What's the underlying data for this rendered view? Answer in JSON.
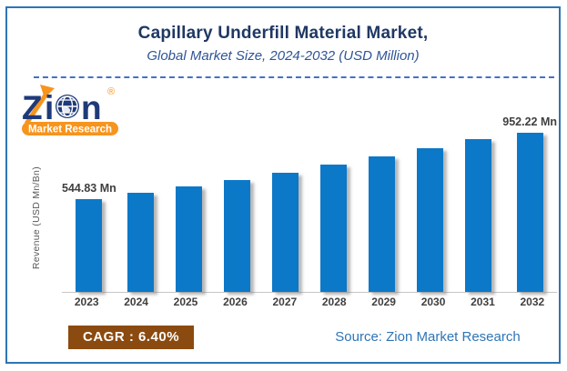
{
  "header": {
    "title": "Capillary Underfill Material Market,",
    "subtitle": "Global Market Size, 2024-2032 (USD Million)"
  },
  "logo": {
    "brand_z": "Z",
    "brand_i": "i",
    "brand_n": "n",
    "registered": "®",
    "tagline": "Market Research"
  },
  "chart_data": {
    "type": "bar",
    "title": "Capillary Underfill Material Market, Global Market Size, 2024-2032 (USD Million)",
    "categories": [
      "2023",
      "2024",
      "2025",
      "2026",
      "2027",
      "2028",
      "2029",
      "2030",
      "2031",
      "2032"
    ],
    "values": [
      544.83,
      579.7,
      616.8,
      656.28,
      698.28,
      742.97,
      790.52,
      841.11,
      894.94,
      952.22
    ],
    "bar_point_labels": [
      "544.83 Mn",
      "",
      "",
      "",
      "",
      "",
      "",
      "",
      "",
      "952.22 Mn"
    ],
    "xlabel": "",
    "ylabel": "Revenue (USD Mn/Bn)",
    "ylim": [
      0,
      952.22
    ],
    "grid": false,
    "legend": false,
    "cagr_percent": 6.4
  },
  "footer": {
    "cagr_label": "CAGR : 6.40%",
    "source": "Source: Zion Market Research"
  },
  "colors": {
    "bar": "#0C78C8",
    "border": "#2E75B6",
    "title": "#1F3864",
    "subtitle": "#2F5496",
    "divider": "#4472C4",
    "cagr_bg": "#8B4A0F",
    "source_text": "#2E75B6",
    "axis_text": "#3F3F3F",
    "logo_navy": "#1E3A78",
    "logo_orange": "#F7941D"
  }
}
